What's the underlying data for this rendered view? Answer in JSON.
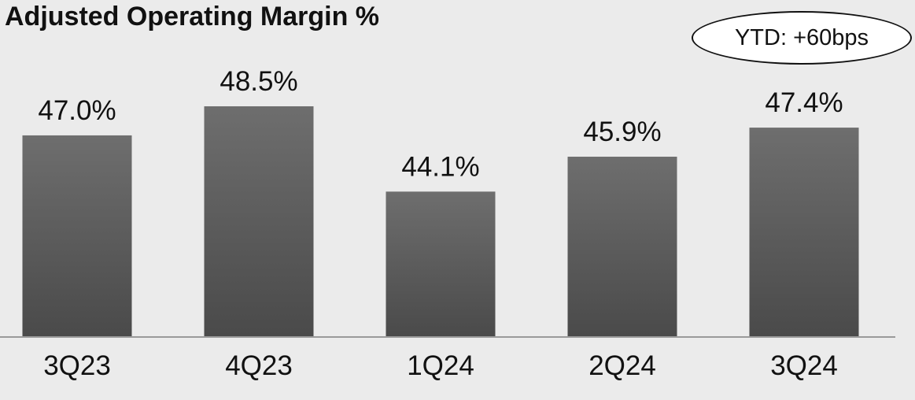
{
  "chart_data": {
    "type": "bar",
    "title": "Adjusted Operating Margin %",
    "categories": [
      "3Q23",
      "4Q23",
      "1Q24",
      "2Q24",
      "3Q24"
    ],
    "values": [
      47.0,
      48.5,
      44.1,
      45.9,
      47.4
    ],
    "value_labels": [
      "47.0%",
      "48.5%",
      "44.1%",
      "45.9%",
      "47.4%"
    ],
    "annotation": "YTD: +60bps",
    "xlabel": "",
    "ylabel": "",
    "ylim": [
      36.6,
      48.5
    ],
    "grid": false,
    "legend": "none",
    "colors": {
      "bar_top": "#6e6e6e",
      "bar_bottom": "#4a4a4a",
      "background": "#ebebeb",
      "axis": "#9a9a9a"
    }
  }
}
